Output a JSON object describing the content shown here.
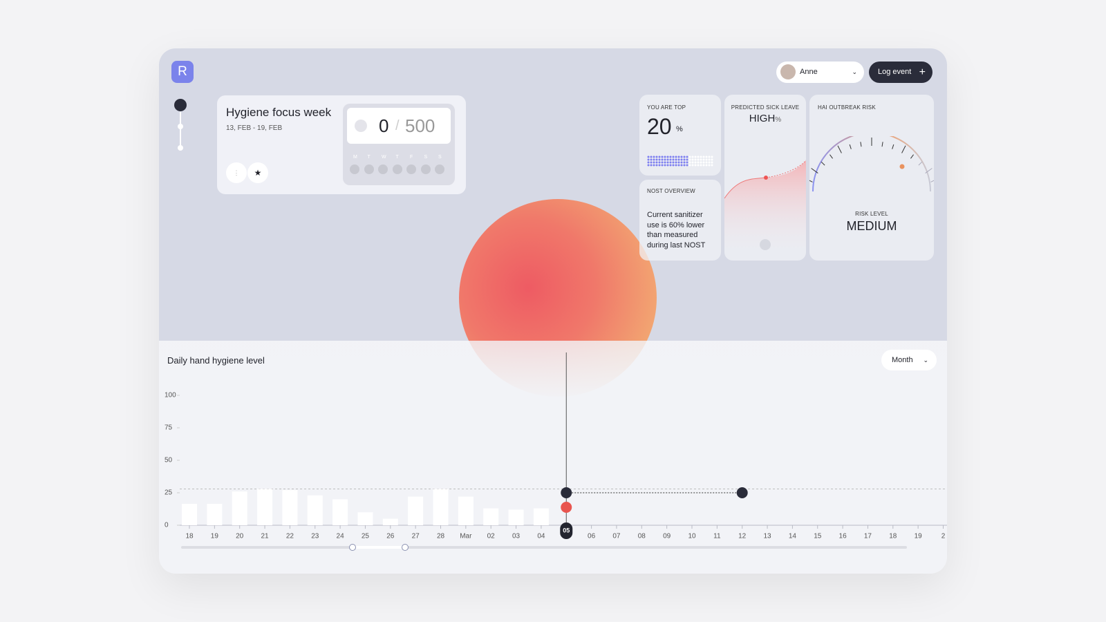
{
  "header": {
    "logo": "R",
    "user": "Anne",
    "button": "Log event"
  },
  "focus_card": {
    "title": "Hygiene focus week",
    "dates": "13, FEB - 19, FEB",
    "progress": 0,
    "separator": "/",
    "target": 500,
    "days": [
      "M",
      "T",
      "W",
      "T",
      "F",
      "S",
      "S"
    ]
  },
  "top_card": {
    "label": "YOU ARE TOP",
    "value": 20,
    "unit": "%"
  },
  "sick_leave_card": {
    "label": "PREDICTED SICK LEAVE",
    "value": "HIGH",
    "unit": "%"
  },
  "outbreak_card": {
    "label": "HAI OUTBREAK RISK",
    "risk_label": "RISK LEVEL",
    "risk_value": "MEDIUM"
  },
  "nost_card": {
    "label": "NOST OVERVIEW",
    "text": "Current sanitizer use is 60% lower than measured during last NOST"
  },
  "chart_data": {
    "type": "bar",
    "title": "Daily hand hygiene level",
    "period": "Month",
    "categories": [
      "18",
      "19",
      "20",
      "21",
      "22",
      "23",
      "24",
      "25",
      "26",
      "27",
      "28",
      "Mar",
      "02",
      "03",
      "04",
      "05",
      "06",
      "07",
      "08",
      "09",
      "10",
      "11",
      "12",
      "13",
      "14",
      "15",
      "16",
      "17",
      "18",
      "19",
      "2"
    ],
    "values": [
      16.5,
      16.5,
      26,
      28,
      27,
      23,
      20,
      10,
      5,
      22,
      28,
      22,
      13,
      12,
      13,
      null,
      null,
      null,
      null,
      null,
      null,
      null,
      null,
      null,
      null,
      null,
      null,
      null,
      null,
      null,
      null
    ],
    "color": "#ffffff",
    "ylim": [
      0,
      100
    ],
    "yticks": [
      0,
      25,
      50,
      75,
      100
    ],
    "reference_line": 28
  }
}
